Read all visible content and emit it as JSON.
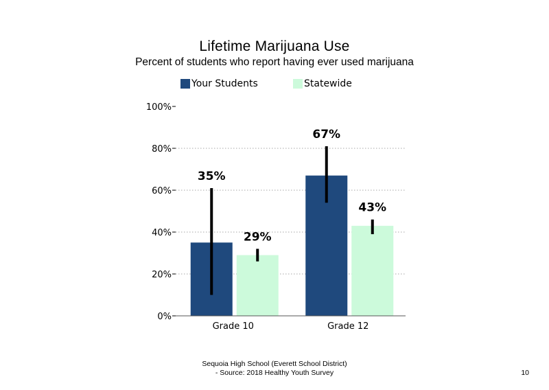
{
  "chart_data": {
    "type": "bar",
    "title": "Lifetime Marijuana Use",
    "subtitle": "Percent of students who report having ever used marijuana",
    "categories": [
      "Grade 10",
      "Grade 12"
    ],
    "series": [
      {
        "name": "Your Students",
        "color": "#1f497d",
        "values": [
          35,
          67
        ],
        "labels": [
          "35%",
          "67%"
        ],
        "error_low": [
          10,
          54
        ],
        "error_high": [
          61,
          81
        ]
      },
      {
        "name": "Statewide",
        "color": "#ccfadb",
        "values": [
          29,
          43
        ],
        "labels": [
          "29%",
          "43%"
        ],
        "error_low": [
          26,
          39
        ],
        "error_high": [
          32,
          46
        ]
      }
    ],
    "ylim": [
      0,
      100
    ],
    "yticks": [
      "0%",
      "20%",
      "40%",
      "60%",
      "80%",
      "100%"
    ],
    "ytick_values": [
      0,
      20,
      40,
      60,
      80,
      100
    ],
    "grid": "dotted horizontal",
    "legend_position": "top"
  },
  "footer": {
    "line1": "Sequoia High School (Everett School District)",
    "line2": "- Source: 2018 Healthy Youth Survey"
  },
  "page_number": "10"
}
